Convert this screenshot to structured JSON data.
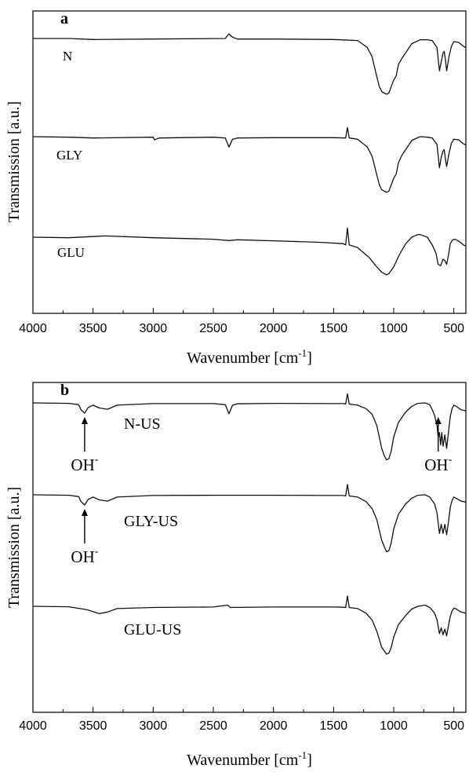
{
  "chart_data": [
    {
      "type": "line",
      "panel_label": "a",
      "xlabel": "Wavenumber [cm",
      "xlabel_sup": "-1",
      "xlabel_close": "]",
      "ylabel": "Transmission [a.u.]",
      "xlim": [
        4000,
        400
      ],
      "x_reversed": true,
      "yticks": false,
      "grid": false,
      "xticks": [
        4000,
        3500,
        3000,
        2500,
        2000,
        1500,
        1000,
        500
      ],
      "xtick_labels": [
        "4000",
        "3500",
        "3000",
        "2500",
        "2000",
        "1500",
        "1000",
        "500"
      ],
      "series": [
        {
          "name": "N",
          "x": [
            4000,
            3700,
            3500,
            3000,
            2400,
            2370,
            2340,
            2300,
            2000,
            1500,
            1300,
            1220,
            1180,
            1150,
            1120,
            1100,
            1060,
            1040,
            1000,
            980,
            960,
            930,
            900,
            850,
            780,
            720,
            680,
            640,
            620,
            605,
            590,
            580,
            570,
            560,
            540,
            520,
            500,
            460,
            420,
            400
          ],
          "y": [
            0.0,
            0.0,
            0.04,
            0.02,
            0.0,
            -0.18,
            -0.05,
            0.02,
            0.02,
            0.04,
            0.08,
            0.35,
            0.7,
            1.3,
            1.85,
            2.05,
            2.15,
            2.1,
            1.6,
            1.45,
            1.0,
            0.75,
            0.55,
            0.2,
            0.05,
            0.05,
            0.08,
            0.35,
            1.25,
            0.9,
            0.55,
            0.5,
            0.8,
            1.25,
            0.7,
            0.3,
            0.12,
            0.15,
            0.3,
            0.35
          ]
        },
        {
          "name": "GLY",
          "x": [
            4000,
            3700,
            3500,
            3000,
            2990,
            2950,
            2500,
            2400,
            2370,
            2340,
            2300,
            2000,
            1500,
            1400,
            1385,
            1370,
            1300,
            1220,
            1180,
            1150,
            1120,
            1100,
            1060,
            1040,
            1000,
            980,
            960,
            930,
            900,
            850,
            780,
            720,
            680,
            640,
            620,
            605,
            590,
            580,
            570,
            560,
            540,
            520,
            500,
            460,
            420,
            400
          ],
          "y": [
            0.0,
            0.02,
            0.05,
            0.02,
            0.12,
            0.05,
            0.02,
            0.05,
            0.4,
            0.1,
            0.05,
            0.04,
            0.04,
            0.05,
            -0.35,
            0.05,
            0.1,
            0.4,
            0.75,
            1.3,
            1.85,
            2.05,
            2.15,
            2.1,
            1.6,
            1.45,
            1.0,
            0.7,
            0.5,
            0.15,
            0.0,
            0.02,
            0.05,
            0.3,
            1.2,
            0.8,
            0.55,
            0.5,
            0.85,
            1.15,
            0.65,
            0.25,
            0.1,
            0.12,
            0.28,
            0.32
          ]
        },
        {
          "name": "GLU",
          "x": [
            4000,
            3700,
            3400,
            3000,
            2500,
            2370,
            2300,
            2000,
            1600,
            1420,
            1400,
            1385,
            1370,
            1300,
            1200,
            1150,
            1100,
            1060,
            1040,
            1000,
            950,
            900,
            850,
            800,
            780,
            720,
            680,
            650,
            630,
            610,
            590,
            575,
            560,
            545,
            530,
            510,
            490,
            450,
            420,
            400
          ],
          "y": [
            0.0,
            0.02,
            -0.05,
            0.02,
            0.08,
            0.13,
            0.1,
            0.14,
            0.2,
            0.25,
            0.3,
            -0.35,
            0.3,
            0.4,
            0.8,
            1.1,
            1.35,
            1.45,
            1.4,
            1.15,
            0.65,
            0.25,
            0.0,
            -0.1,
            -0.1,
            0.0,
            0.3,
            0.6,
            1.05,
            1.1,
            0.85,
            0.9,
            1.05,
            0.7,
            0.25,
            0.1,
            0.08,
            0.18,
            0.3,
            0.34
          ]
        }
      ]
    },
    {
      "type": "line",
      "panel_label": "b",
      "xlabel": "Wavenumber [cm",
      "xlabel_sup": "-1",
      "xlabel_close": "]",
      "ylabel": "Transmission [a.u.]",
      "xlim": [
        4000,
        400
      ],
      "x_reversed": true,
      "yticks": false,
      "grid": false,
      "xticks": [
        4000,
        3500,
        3000,
        2500,
        2000,
        1500,
        1000,
        500
      ],
      "xtick_labels": [
        "4000",
        "3500",
        "3000",
        "2500",
        "2000",
        "1500",
        "1000",
        "500"
      ],
      "annotations": [
        {
          "text": "OH",
          "sup": "-",
          "x": 3570,
          "series": "N-US"
        },
        {
          "text": "OH",
          "sup": "-",
          "x": 630,
          "series": "N-US"
        },
        {
          "text": "OH",
          "sup": "-",
          "x": 3570,
          "series": "GLY-US"
        }
      ],
      "series": [
        {
          "name": "N-US",
          "x": [
            4000,
            3700,
            3620,
            3600,
            3570,
            3540,
            3500,
            3450,
            3380,
            3300,
            3000,
            2500,
            2400,
            2370,
            2340,
            2300,
            2000,
            1500,
            1420,
            1400,
            1385,
            1370,
            1300,
            1230,
            1180,
            1140,
            1100,
            1080,
            1060,
            1040,
            1020,
            1000,
            960,
            900,
            850,
            800,
            740,
            700,
            680,
            660,
            640,
            630,
            620,
            610,
            600,
            590,
            575,
            560,
            545,
            530,
            515,
            500,
            480,
            440,
            400
          ],
          "y": [
            0.0,
            0.02,
            0.08,
            0.3,
            0.45,
            0.2,
            0.1,
            0.22,
            0.28,
            0.1,
            0.03,
            0.03,
            0.08,
            0.48,
            0.1,
            0.04,
            0.02,
            0.03,
            0.03,
            0.05,
            -0.4,
            0.05,
            0.1,
            0.25,
            0.5,
            1.0,
            2.0,
            2.3,
            2.5,
            2.45,
            2.1,
            1.5,
            0.85,
            0.4,
            0.15,
            0.02,
            0.0,
            0.08,
            0.3,
            0.55,
            1.0,
            1.5,
            1.3,
            1.85,
            1.3,
            1.9,
            1.4,
            2.0,
            1.3,
            0.6,
            0.25,
            0.1,
            0.15,
            0.3,
            0.35
          ]
        },
        {
          "name": "GLY-US",
          "x": [
            4000,
            3700,
            3620,
            3600,
            3570,
            3540,
            3500,
            3450,
            3380,
            3300,
            3000,
            2500,
            2000,
            1500,
            1420,
            1400,
            1385,
            1370,
            1300,
            1230,
            1180,
            1140,
            1100,
            1060,
            1040,
            1020,
            1000,
            960,
            900,
            850,
            800,
            740,
            700,
            660,
            640,
            620,
            605,
            590,
            575,
            560,
            545,
            530,
            515,
            500,
            480,
            440,
            400
          ],
          "y": [
            0.0,
            0.02,
            0.08,
            0.3,
            0.45,
            0.2,
            0.1,
            0.22,
            0.28,
            0.1,
            0.03,
            0.02,
            0.02,
            0.03,
            0.03,
            0.05,
            -0.45,
            0.05,
            0.1,
            0.3,
            0.6,
            1.1,
            2.0,
            2.5,
            2.45,
            2.1,
            1.5,
            0.85,
            0.4,
            0.15,
            0.02,
            0.0,
            0.1,
            0.4,
            0.8,
            1.7,
            1.3,
            1.7,
            1.3,
            1.75,
            1.2,
            0.55,
            0.25,
            0.1,
            0.15,
            0.28,
            0.32
          ]
        },
        {
          "name": "GLU-US",
          "x": [
            4000,
            3700,
            3550,
            3450,
            3380,
            3300,
            3000,
            2500,
            2380,
            2360,
            2000,
            1500,
            1420,
            1400,
            1385,
            1370,
            1300,
            1230,
            1180,
            1140,
            1100,
            1060,
            1040,
            1020,
            1000,
            960,
            900,
            850,
            800,
            740,
            700,
            660,
            640,
            620,
            605,
            590,
            575,
            560,
            545,
            530,
            515,
            500,
            480,
            440,
            400
          ],
          "y": [
            0.0,
            0.02,
            0.15,
            0.32,
            0.25,
            0.1,
            0.05,
            0.03,
            -0.05,
            0.05,
            0.03,
            0.03,
            0.04,
            0.05,
            -0.45,
            0.05,
            0.1,
            0.3,
            0.6,
            1.1,
            1.8,
            2.1,
            2.05,
            1.8,
            1.35,
            0.8,
            0.4,
            0.12,
            0.0,
            -0.05,
            0.05,
            0.3,
            0.6,
            1.2,
            0.95,
            1.25,
            1.0,
            1.3,
            0.85,
            0.45,
            0.2,
            0.08,
            0.12,
            0.25,
            0.3
          ]
        }
      ]
    }
  ]
}
